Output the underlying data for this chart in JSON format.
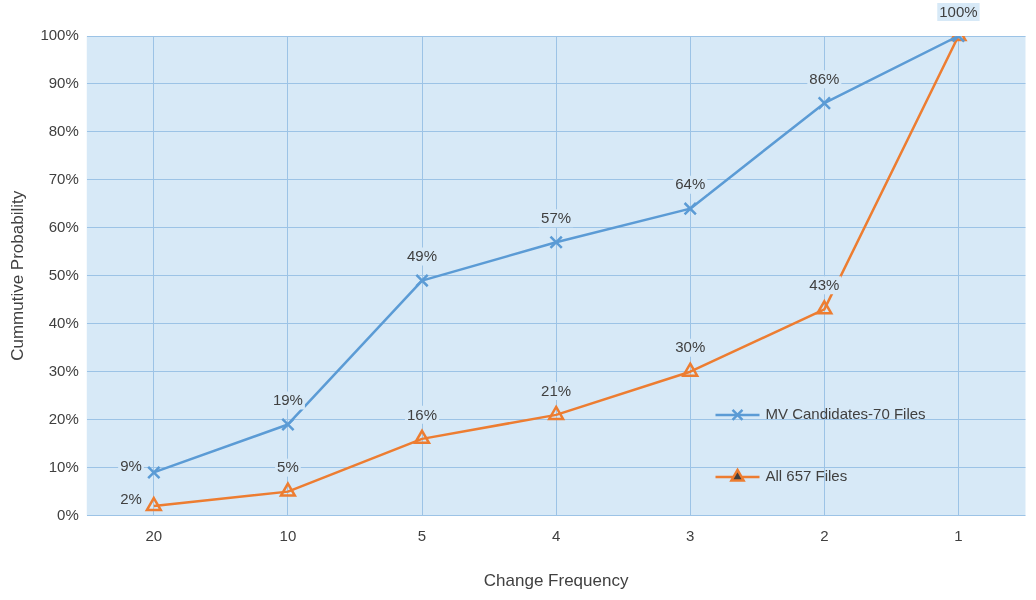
{
  "chart_data": {
    "type": "line",
    "xlabel": "Change Frequency",
    "ylabel": "Cummutive Probability",
    "categories": [
      "20",
      "10",
      "5",
      "4",
      "3",
      "2",
      "1"
    ],
    "series": [
      {
        "name": "MV Candidates-70 Files",
        "color": "#5b9bd5",
        "marker": "cross",
        "values": [
          9,
          19,
          49,
          57,
          64,
          86,
          100
        ],
        "value_labels": [
          "9%",
          "19%",
          "49%",
          "57%",
          "64%",
          "86%",
          "100%"
        ]
      },
      {
        "name": "All 657 Files",
        "color": "#ed7d31",
        "marker": "triangle",
        "values": [
          2,
          5,
          16,
          21,
          30,
          43,
          100
        ],
        "value_labels": [
          "2%",
          "5%",
          "16%",
          "21%",
          "30%",
          "43%",
          null
        ]
      }
    ],
    "ylim": [
      0,
      100
    ],
    "yticks": [
      {
        "value": 0,
        "label": "0%"
      },
      {
        "value": 10,
        "label": "10%"
      },
      {
        "value": 20,
        "label": "20%"
      },
      {
        "value": 30,
        "label": "30%"
      },
      {
        "value": 40,
        "label": "40%"
      },
      {
        "value": 50,
        "label": "50%"
      },
      {
        "value": 60,
        "label": "60%"
      },
      {
        "value": 70,
        "label": "70%"
      },
      {
        "value": 80,
        "label": "80%"
      },
      {
        "value": 90,
        "label": "90%"
      },
      {
        "value": 100,
        "label": "100%"
      }
    ],
    "grid": true,
    "legend": "right",
    "line_style": "solid"
  }
}
